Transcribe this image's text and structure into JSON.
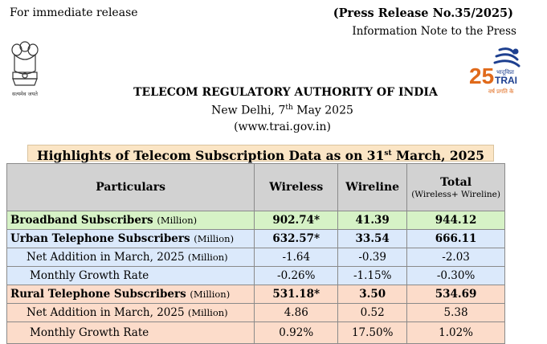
{
  "header": {
    "release_note": "For immediate release",
    "press_release": "(Press Release No.35/2025)",
    "info_note": "Information Note to the Press",
    "emblem_motto": "सत्यमेव जयते",
    "org_name": "TELECOM REGULATORY AUTHORITY OF INDIA",
    "date_prefix": "New Delhi, 7",
    "date_sup": "th",
    "date_suffix": " May 2025",
    "website": "(www.trai.gov.in)"
  },
  "trai_logo": {
    "hindi": "भादूविप्रा",
    "text": "TRAI",
    "years": "25",
    "tagline": "वर्ष प्रगति के"
  },
  "highlights": {
    "prefix": "Highlights of Telecom Subscription Data as on 31",
    "sup": "st",
    "suffix": " March, 2025"
  },
  "table": {
    "headers": {
      "particulars": "Particulars",
      "wireless": "Wireless",
      "wireline": "Wireline",
      "total": "Total",
      "total_sub": "(Wireless+ Wireline)"
    },
    "rows": [
      {
        "label": "Broadband Subscribers",
        "unit": "(Million)",
        "wireless": "902.74*",
        "wireline": "41.39",
        "total": "944.12"
      },
      {
        "label": "Urban Telephone Subscribers",
        "unit": "(Million)",
        "wireless": "632.57*",
        "wireline": "33.54",
        "total": "666.11"
      },
      {
        "label": "Net Addition in March, 2025",
        "unit": "(Million)",
        "wireless": "-1.64",
        "wireline": "-0.39",
        "total": "-2.03"
      },
      {
        "label": "Monthly Growth Rate",
        "unit": "",
        "wireless": "-0.26%",
        "wireline": "-1.15%",
        "total": "-0.30%"
      },
      {
        "label": "Rural Telephone Subscribers",
        "unit": "(Million)",
        "wireless": "531.18*",
        "wireline": "3.50",
        "total": "534.69"
      },
      {
        "label": "Net Addition in March, 2025",
        "unit": "(Million)",
        "wireless": "4.86",
        "wireline": "0.52",
        "total": "5.38"
      },
      {
        "label": "Monthly Growth Rate",
        "unit": "",
        "wireless": "0.92%",
        "wireline": "17.50%",
        "total": "1.02%"
      }
    ]
  },
  "colors": {
    "broadband": "#d6f2c6",
    "urban": "#dbe9fb",
    "rural": "#fcdcca",
    "highlight": "#fbe5c5",
    "header": "#d2d2d2"
  }
}
